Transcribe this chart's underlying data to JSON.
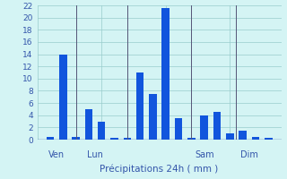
{
  "bars": [
    {
      "x": 1,
      "value": 0.5
    },
    {
      "x": 2,
      "value": 14
    },
    {
      "x": 3,
      "value": 0.5
    },
    {
      "x": 4,
      "value": 5
    },
    {
      "x": 5,
      "value": 3
    },
    {
      "x": 6,
      "value": 0.3
    },
    {
      "x": 7,
      "value": 0.3
    },
    {
      "x": 8,
      "value": 11
    },
    {
      "x": 9,
      "value": 7.5
    },
    {
      "x": 10,
      "value": 21.5
    },
    {
      "x": 11,
      "value": 3.5
    },
    {
      "x": 12,
      "value": 0.3
    },
    {
      "x": 13,
      "value": 4
    },
    {
      "x": 14,
      "value": 4.5
    },
    {
      "x": 15,
      "value": 1
    },
    {
      "x": 16,
      "value": 1.5
    },
    {
      "x": 17,
      "value": 0.4
    },
    {
      "x": 18,
      "value": 0.3
    }
  ],
  "bar_color": "#1155dd",
  "background_color": "#d4f4f4",
  "grid_color": "#99cccc",
  "text_color": "#3355aa",
  "xlabel": "Précipitations 24h ( mm )",
  "ylim": [
    0,
    22
  ],
  "yticks": [
    0,
    2,
    4,
    6,
    8,
    10,
    12,
    14,
    16,
    18,
    20,
    22
  ],
  "xlim": [
    0,
    19
  ],
  "bar_width": 0.6,
  "day_labels": [
    {
      "label": "Ven",
      "x": 1.5
    },
    {
      "label": "Lun",
      "x": 4.5
    },
    {
      "label": "Sam",
      "x": 13
    },
    {
      "label": "Dim",
      "x": 16.5
    }
  ],
  "day_dividers": [
    3.0,
    7.0,
    12.0,
    15.5
  ],
  "xlabel_fontsize": 7.5,
  "tick_fontsize": 6.5,
  "day_label_fontsize": 7
}
